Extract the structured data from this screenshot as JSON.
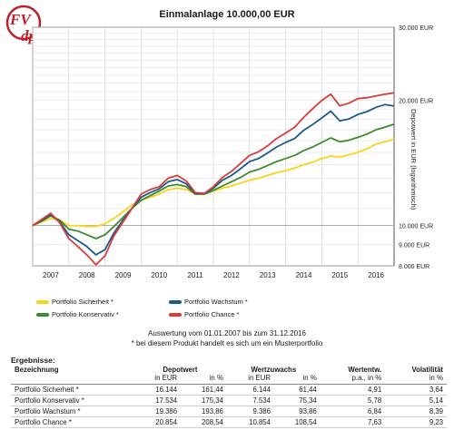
{
  "logo": {
    "text_top": "FV",
    "text_bottom": "dp"
  },
  "chart_data": {
    "type": "line",
    "title": "Einmalanlage 10.000,00 EUR",
    "ylabel": "Depotwert in EUR (logarithmisch)",
    "xlabel": "",
    "y_scale": "log",
    "ylim": [
      8000,
      30000
    ],
    "xlim": [
      2007.0,
      2017.0
    ],
    "y_ticks": [
      {
        "value": 30000,
        "label": "30.000 EUR"
      },
      {
        "value": 20000,
        "label": "20.000 EUR"
      },
      {
        "value": 10000,
        "label": "10.000 EUR"
      },
      {
        "value": 9000,
        "label": "9.000 EUR"
      },
      {
        "value": 8000,
        "label": "8.000 EUR"
      }
    ],
    "x_ticks": [
      "2007",
      "2008",
      "2009",
      "2010",
      "2011",
      "2012",
      "2013",
      "2014",
      "2015",
      "2016"
    ],
    "grid": true,
    "legend_position": "bottom",
    "x": [
      2007.0,
      2007.25,
      2007.5,
      2007.75,
      2008.0,
      2008.25,
      2008.5,
      2008.75,
      2009.0,
      2009.25,
      2009.5,
      2009.75,
      2010.0,
      2010.25,
      2010.5,
      2010.75,
      2011.0,
      2011.25,
      2011.5,
      2011.75,
      2012.0,
      2012.25,
      2012.5,
      2012.75,
      2013.0,
      2013.25,
      2013.5,
      2013.75,
      2014.0,
      2014.25,
      2014.5,
      2014.75,
      2015.0,
      2015.25,
      2015.5,
      2015.75,
      2016.0,
      2016.25,
      2016.5,
      2016.75,
      2017.0
    ],
    "series": [
      {
        "name": "Portfolio Sicherheit *",
        "color": "#ffd21a",
        "values": [
          10000,
          10200,
          10400,
          10300,
          10000,
          10000,
          9950,
          9950,
          10100,
          10400,
          10800,
          11200,
          11500,
          11700,
          11900,
          12200,
          12300,
          12200,
          11900,
          11900,
          12100,
          12300,
          12450,
          12650,
          12850,
          13000,
          13200,
          13400,
          13550,
          13750,
          14000,
          14200,
          14500,
          14700,
          14600,
          14800,
          15000,
          15300,
          15700,
          15900,
          16144
        ]
      },
      {
        "name": "Portfolio Konservativ *",
        "color": "#3a8c2e",
        "values": [
          10000,
          10250,
          10550,
          10300,
          9800,
          9700,
          9500,
          9300,
          9500,
          9950,
          10450,
          11000,
          11500,
          11800,
          12100,
          12450,
          12550,
          12400,
          11900,
          11900,
          12150,
          12450,
          12750,
          13050,
          13450,
          13650,
          13950,
          14250,
          14500,
          14750,
          15150,
          15450,
          15850,
          16250,
          15900,
          16050,
          16300,
          16600,
          17000,
          17250,
          17534
        ]
      },
      {
        "name": "Portfolio Wachstum *",
        "color": "#1d5a8c",
        "values": [
          10000,
          10300,
          10600,
          10200,
          9500,
          9200,
          8900,
          8500,
          8750,
          9600,
          10300,
          11000,
          11700,
          12000,
          12250,
          12750,
          12900,
          12600,
          11950,
          11950,
          12300,
          12850,
          13200,
          13700,
          14250,
          14500,
          14950,
          15450,
          15850,
          16200,
          16950,
          17500,
          18150,
          18850,
          17850,
          18050,
          18500,
          18800,
          19250,
          19550,
          19386
        ]
      },
      {
        "name": "Portfolio Chance *",
        "color": "#d93b3b",
        "values": [
          10000,
          10350,
          10700,
          10150,
          9300,
          8900,
          8500,
          8050,
          8450,
          9450,
          10200,
          11000,
          11900,
          12200,
          12400,
          13000,
          13200,
          12800,
          12000,
          11950,
          12400,
          13050,
          13500,
          14100,
          14750,
          15050,
          15550,
          16200,
          16700,
          17250,
          18200,
          19100,
          20000,
          20700,
          19400,
          19700,
          20200,
          20300,
          20500,
          20700,
          20854
        ]
      }
    ]
  },
  "legend": {
    "items": [
      "Portfolio Sicherheit *",
      "Portfolio Wachstum *",
      "Portfolio Konservativ *",
      "Portfolio Chance *"
    ]
  },
  "notes": {
    "line1": "Auswertung vom 01.01.2007 bis zum 31.12.2016",
    "line2": "* bei diesem Produkt handelt es sich um ein Musterportfolio"
  },
  "results": {
    "title": "Ergebnisse:",
    "header1": {
      "name": "Bezeichnung",
      "depotwert": "Depotwert",
      "wertzuwachs": "Wertzuwachs",
      "wertentw": "Wertentw.",
      "volatilitaet": "Volatilität"
    },
    "header2": {
      "in_eur_1": "in EUR",
      "in_pct_1": "in %",
      "in_eur_2": "in EUR",
      "in_pct_2": "in %",
      "pa_pct": "p.a., in %",
      "in_pct_3": "in %"
    },
    "rows": [
      {
        "name": "Portfolio Sicherheit *",
        "dw_eur": "16.144",
        "dw_pct": "161,44",
        "wz_eur": "6.144",
        "wz_pct": "61,44",
        "pa": "4,91",
        "vol": "3,64"
      },
      {
        "name": "Portfolio Konservativ *",
        "dw_eur": "17.534",
        "dw_pct": "175,34",
        "wz_eur": "7.534",
        "wz_pct": "75,34",
        "pa": "5,78",
        "vol": "5,14"
      },
      {
        "name": "Portfolio Wachstum *",
        "dw_eur": "19.386",
        "dw_pct": "193,86",
        "wz_eur": "9.386",
        "wz_pct": "93,86",
        "pa": "6,84",
        "vol": "8,39"
      },
      {
        "name": "Portfolio Chance *",
        "dw_eur": "20.854",
        "dw_pct": "208,54",
        "wz_eur": "10.854",
        "wz_pct": "108,54",
        "pa": "7,63",
        "vol": "9,23"
      }
    ]
  }
}
